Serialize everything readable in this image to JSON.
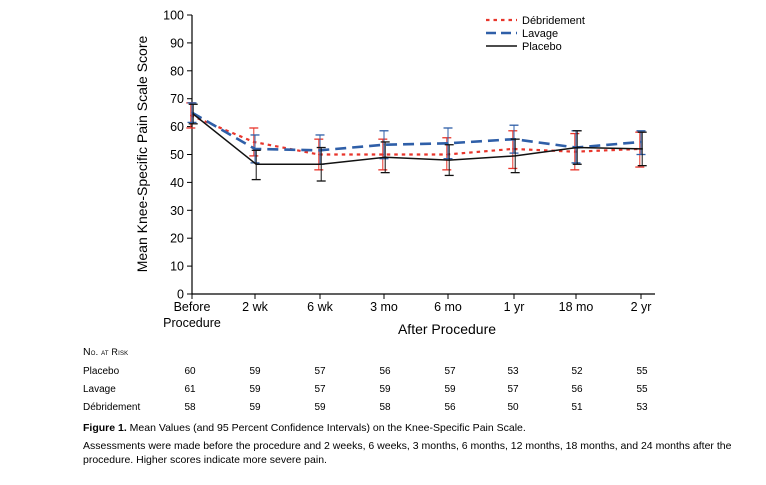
{
  "chart_data": {
    "type": "line",
    "ylabel": "Mean Knee-Specific Pain Scale Score",
    "xlabel": "After Procedure",
    "ylim": [
      0,
      100
    ],
    "yticks": [
      0,
      10,
      20,
      30,
      40,
      50,
      60,
      70,
      80,
      90,
      100
    ],
    "categories": [
      "Before Procedure",
      "2 wk",
      "6 wk",
      "3 mo",
      "6 mo",
      "1 yr",
      "18 mo",
      "2 yr"
    ],
    "category_lines": [
      [
        "Before",
        "Procedure"
      ],
      [
        "2 wk"
      ],
      [
        "6 wk"
      ],
      [
        "3 mo"
      ],
      [
        "6 mo"
      ],
      [
        "1 yr"
      ],
      [
        "18 mo"
      ],
      [
        "2 yr"
      ]
    ],
    "legend_position": "top-right",
    "series": [
      {
        "name": "Débridement",
        "color": "#e8352b",
        "dash": "dotted",
        "values": [
          64,
          54.5,
          50,
          50,
          50,
          52,
          51,
          52
        ],
        "ci_low": [
          59.5,
          49.5,
          44.5,
          44.5,
          44.5,
          45,
          44.5,
          45.5
        ],
        "ci_high": [
          68.5,
          59.5,
          55.5,
          55.5,
          56,
          58.5,
          57.5,
          58
        ]
      },
      {
        "name": "Lavage",
        "color": "#2f5fa8",
        "dash": "dashed",
        "values": [
          65,
          52,
          51.5,
          53.5,
          54,
          55.5,
          52.5,
          54.5
        ],
        "ci_low": [
          61.5,
          47,
          46.5,
          48.5,
          48.5,
          50.5,
          47,
          50
        ],
        "ci_high": [
          68.5,
          57,
          57,
          58.5,
          59.5,
          60.5,
          58.5,
          58.5
        ]
      },
      {
        "name": "Placebo",
        "color": "#111111",
        "dash": "solid",
        "values": [
          64.5,
          46.5,
          46.5,
          49,
          48,
          49.5,
          52.5,
          52
        ],
        "ci_low": [
          61,
          41,
          40.5,
          43.5,
          42.5,
          43.5,
          46.5,
          46
        ],
        "ci_high": [
          68,
          51.5,
          52.5,
          54.5,
          53.5,
          55.5,
          58.5,
          58
        ]
      }
    ]
  },
  "at_risk": {
    "title_prefix": "N",
    "title_rest": "o. at Risk",
    "rows": [
      {
        "label": "Placebo",
        "values": [
          "60",
          "59",
          "57",
          "56",
          "57",
          "53",
          "52",
          "55"
        ]
      },
      {
        "label": "Lavage",
        "values": [
          "61",
          "59",
          "57",
          "59",
          "59",
          "57",
          "56",
          "55"
        ]
      },
      {
        "label": "Débridement",
        "values": [
          "58",
          "59",
          "59",
          "58",
          "56",
          "50",
          "51",
          "53"
        ]
      }
    ]
  },
  "caption": {
    "label": "Figure 1.",
    "title": " Mean Values (and 95 Percent Confidence Intervals) on the Knee-Specific Pain Scale.",
    "body": "Assessments were made before the procedure and 2 weeks, 6 weeks, 3 months, 6 months, 12 months, 18 months, and 24 months after the procedure. Higher scores indicate more severe pain."
  }
}
